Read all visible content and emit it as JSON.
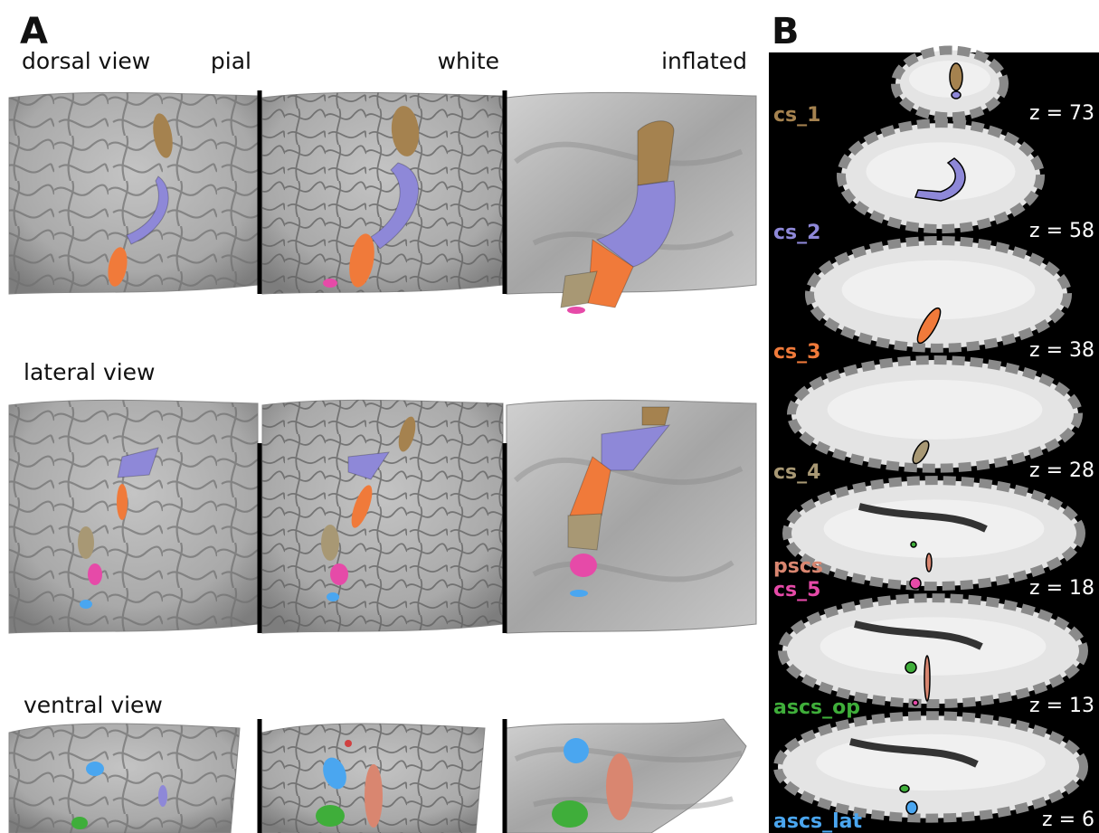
{
  "panel_a": {
    "label": "A",
    "columns": [
      "pial",
      "white",
      "inflated"
    ],
    "rows": [
      "dorsal view",
      "lateral view",
      "ventral view"
    ]
  },
  "panel_b": {
    "label": "B",
    "slices": [
      {
        "labels": [
          {
            "text": "cs_1",
            "color": "#a5824f"
          }
        ],
        "z_label": "z = 73"
      },
      {
        "labels": [
          {
            "text": "cs_2",
            "color": "#8e88d8"
          }
        ],
        "z_label": "z = 58"
      },
      {
        "labels": [
          {
            "text": "cs_3",
            "color": "#f07a3a"
          }
        ],
        "z_label": "z = 38"
      },
      {
        "labels": [
          {
            "text": "cs_4",
            "color": "#a89874"
          }
        ],
        "z_label": "z = 28"
      },
      {
        "labels": [
          {
            "text": "pscs",
            "color": "#d98670"
          },
          {
            "text": "cs_5",
            "color": "#e64aa8"
          }
        ],
        "z_label": "z = 18"
      },
      {
        "labels": [
          {
            "text": "ascs_op",
            "color": "#3fae3a"
          }
        ],
        "z_label": "z = 13"
      },
      {
        "labels": [
          {
            "text": "ascs_lat",
            "color": "#4aa6f0"
          }
        ],
        "z_label": "z = 6"
      }
    ]
  }
}
